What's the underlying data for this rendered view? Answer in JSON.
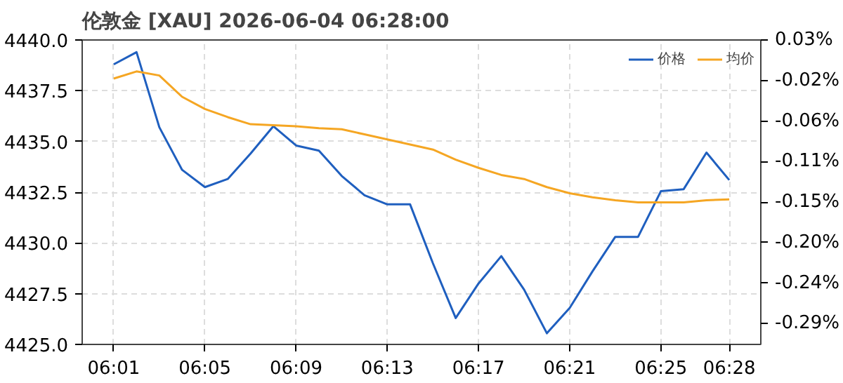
{
  "chart_data": {
    "type": "line",
    "title": "伦敦金 [XAU]  2026-06-04 06:28:00",
    "x": [
      "2026-06-04T06:01",
      "2026-06-04T06:02",
      "2026-06-04T06:03",
      "2026-06-04T06:04",
      "2026-06-04T06:05",
      "2026-06-04T06:06",
      "2026-06-04T06:07",
      "2026-06-04T06:08",
      "2026-06-04T06:09",
      "2026-06-04T06:10",
      "2026-06-04T06:11",
      "2026-06-04T06:12",
      "2026-06-04T06:13",
      "2026-06-04T06:14",
      "2026-06-04T06:15",
      "2026-06-04T06:16",
      "2026-06-04T06:17",
      "2026-06-04T06:18",
      "2026-06-04T06:19",
      "2026-06-04T06:20",
      "2026-06-04T06:21",
      "2026-06-04T06:22",
      "2026-06-04T06:23",
      "2026-06-04T06:24",
      "2026-06-04T06:25",
      "2026-06-04T06:26",
      "2026-06-04T06:27",
      "2026-06-04T06:28"
    ],
    "series": [
      {
        "name": "价格",
        "color": "#1f5fbf",
        "values": [
          4438.8,
          4439.4,
          4435.7,
          4433.6,
          4432.75,
          4433.15,
          4434.4,
          4435.75,
          4434.8,
          4434.55,
          4433.3,
          4432.35,
          4431.9,
          4431.9,
          4429.0,
          4426.3,
          4428.0,
          4429.35,
          4427.7,
          4425.55,
          4426.8,
          4428.6,
          4430.3,
          4430.3,
          4432.55,
          4432.65,
          4434.45,
          4433.1
        ]
      },
      {
        "name": "均价",
        "color": "#f5a623",
        "values": [
          4438.1,
          4438.45,
          4438.25,
          4437.2,
          4436.6,
          4436.2,
          4435.85,
          4435.8,
          4435.75,
          4435.65,
          4435.6,
          4435.35,
          4435.1,
          4434.85,
          4434.6,
          4434.1,
          4433.7,
          4433.35,
          4433.15,
          4432.75,
          4432.45,
          4432.25,
          4432.1,
          4432.0,
          4432.0,
          4432.0,
          4432.1,
          4432.15
        ]
      }
    ],
    "xlim": [
      "2026-06-04T05:59:37",
      "2026-06-04T06:29:23"
    ],
    "xticks": [
      {
        "value": "2026-06-04T06:01",
        "label": "06:01"
      },
      {
        "value": "2026-06-04T06:05",
        "label": "06:05"
      },
      {
        "value": "2026-06-04T06:09",
        "label": "06:09"
      },
      {
        "value": "2026-06-04T06:13",
        "label": "06:13"
      },
      {
        "value": "2026-06-04T06:17",
        "label": "06:17"
      },
      {
        "value": "2026-06-04T06:21",
        "label": "06:21"
      },
      {
        "value": "2026-06-04T06:25",
        "label": "06:25"
      },
      {
        "value": "2026-06-04T06:28",
        "label": "06:28"
      }
    ],
    "ylim": [
      4425.0,
      4440.0
    ],
    "yticks": [
      {
        "value": 4425,
        "label": "4425.0"
      },
      {
        "value": 4427.5,
        "label": "4427.5"
      },
      {
        "value": 4430,
        "label": "4430.0"
      },
      {
        "value": 4432.5,
        "label": "4432.5"
      },
      {
        "value": 4435,
        "label": "4435.0"
      },
      {
        "value": 4437.5,
        "label": "4437.5"
      },
      {
        "value": 4440,
        "label": "4440.0"
      }
    ],
    "y2lim": [
      -0.308,
      0.03
    ],
    "y2ticks": [
      {
        "value": 0.03,
        "label": "0.03%"
      },
      {
        "value": -0.015,
        "label": "-0.02%"
      },
      {
        "value": -0.06,
        "label": "-0.06%"
      },
      {
        "value": -0.105,
        "label": "-0.11%"
      },
      {
        "value": -0.15,
        "label": "-0.15%"
      },
      {
        "value": -0.195,
        "label": "-0.20%"
      },
      {
        "value": -0.24,
        "label": "-0.24%"
      },
      {
        "value": -0.285,
        "label": "-0.29%"
      }
    ],
    "grid": true,
    "legend": "top right",
    "line_style": "solid",
    "marker": "none"
  }
}
